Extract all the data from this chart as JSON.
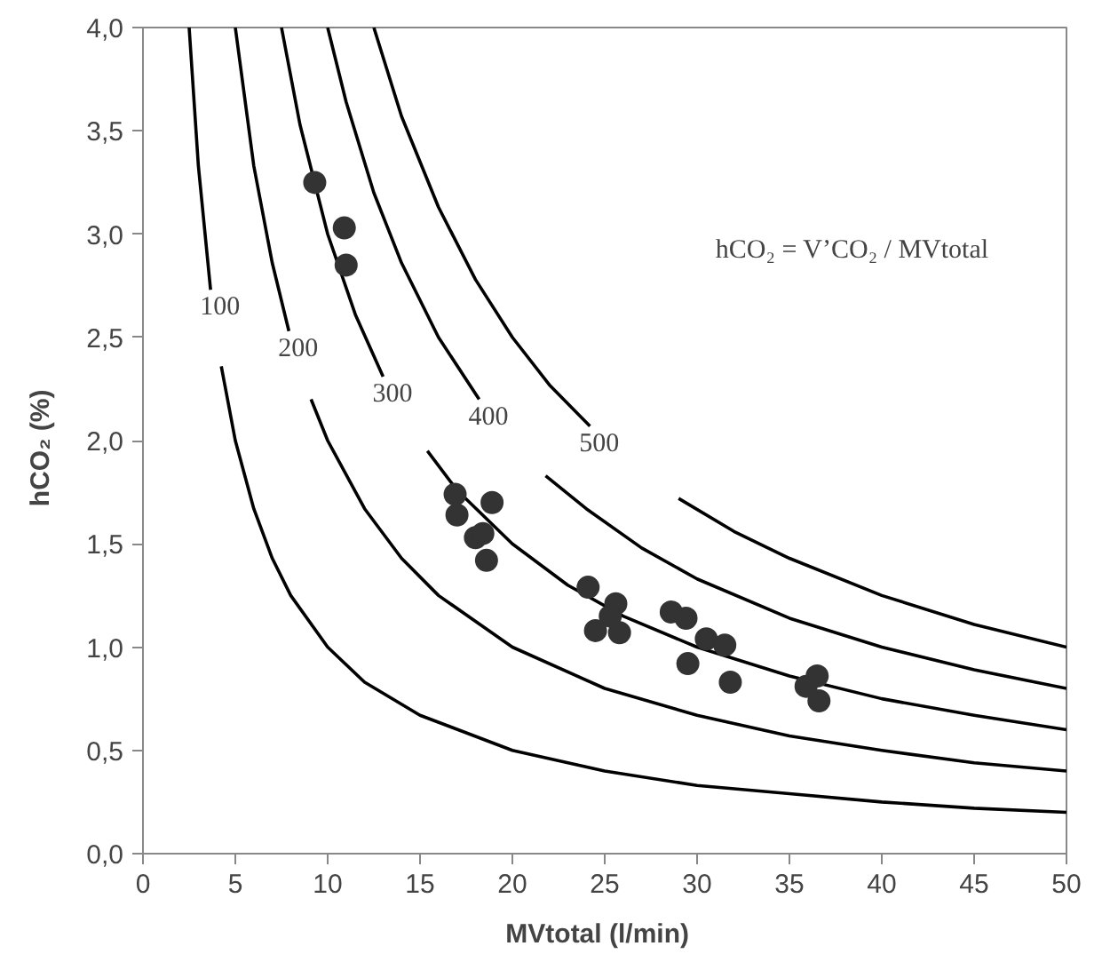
{
  "chart_data": {
    "type": "scatter",
    "xlabel": "MVtotal   (l/min)",
    "ylabel": "hCO₂   (%)",
    "xlim": [
      0,
      50
    ],
    "ylim": [
      0,
      4
    ],
    "xticks": [
      0,
      5,
      10,
      15,
      20,
      25,
      30,
      35,
      40,
      45,
      50
    ],
    "yticks": [
      {
        "value": 0,
        "label": "0,0"
      },
      {
        "value": 0.5,
        "label": "0,5"
      },
      {
        "value": 1,
        "label": "1,0"
      },
      {
        "value": 1.5,
        "label": "1,5"
      },
      {
        "value": 2,
        "label": "2,0"
      },
      {
        "value": 2.5,
        "label": "2,5"
      },
      {
        "value": 3,
        "label": "3,0"
      },
      {
        "value": 3.5,
        "label": "3,5"
      },
      {
        "value": 4,
        "label": "4,0"
      }
    ],
    "grid": false,
    "marker": "circle",
    "series": [
      {
        "color": "#333333",
        "x": [
          9.3,
          10.9,
          11.0,
          16.9,
          17.0,
          18.9,
          18.0,
          18.4,
          18.6,
          24.1,
          25.6,
          25.3,
          24.5,
          25.8,
          28.6,
          29.4,
          30.5,
          31.5,
          29.5,
          31.8,
          36.5,
          35.9,
          36.6
        ],
        "values": [
          3.25,
          3.03,
          2.85,
          1.74,
          1.64,
          1.7,
          1.53,
          1.55,
          1.42,
          1.29,
          1.21,
          1.15,
          1.08,
          1.07,
          1.17,
          1.14,
          1.04,
          1.01,
          0.92,
          0.83,
          0.86,
          0.81,
          0.74
        ]
      },
      {
        "type": "line",
        "name": "100",
        "color": "#000000",
        "marker": "none",
        "line_style": "solid",
        "x": [
          2.5,
          3,
          3.66,
          3.95,
          4.24,
          5,
          6,
          7,
          8,
          10,
          12,
          15,
          20,
          25,
          30,
          35,
          40,
          45,
          50
        ],
        "values": [
          4,
          3.33,
          2.73,
          null,
          2.36,
          2,
          1.67,
          1.43,
          1.25,
          1,
          0.83,
          0.67,
          0.5,
          0.4,
          0.33,
          0.29,
          0.25,
          0.22,
          0.2
        ]
      },
      {
        "type": "line",
        "name": "200",
        "color": "#000000",
        "marker": "none",
        "line_style": "solid",
        "x": [
          5,
          6,
          7,
          7.9,
          8.5,
          9.1,
          10,
          12,
          14,
          16,
          20,
          25,
          30,
          35,
          40,
          45,
          50
        ],
        "values": [
          4,
          3.33,
          2.86,
          2.53,
          null,
          2.2,
          2,
          1.67,
          1.43,
          1.25,
          1,
          0.8,
          0.67,
          0.57,
          0.5,
          0.44,
          0.4
        ]
      },
      {
        "type": "line",
        "name": "300",
        "color": "#000000",
        "marker": "none",
        "line_style": "solid",
        "x": [
          7.5,
          8.5,
          10,
          11.5,
          13,
          14.2,
          15.4,
          17,
          20,
          23,
          26,
          30,
          35,
          40,
          45,
          50
        ],
        "values": [
          4,
          3.53,
          3,
          2.61,
          2.31,
          null,
          1.95,
          1.76,
          1.5,
          1.3,
          1.15,
          1,
          0.86,
          0.75,
          0.67,
          0.6
        ]
      },
      {
        "type": "line",
        "name": "400",
        "color": "#000000",
        "marker": "none",
        "line_style": "solid",
        "x": [
          10,
          11,
          12.5,
          14,
          16,
          18.2,
          20,
          21.8,
          24,
          27,
          30,
          35,
          40,
          45,
          50
        ],
        "values": [
          4,
          3.64,
          3.2,
          2.86,
          2.5,
          2.2,
          null,
          1.83,
          1.67,
          1.48,
          1.33,
          1.14,
          1,
          0.89,
          0.8
        ]
      },
      {
        "type": "line",
        "name": "500",
        "color": "#000000",
        "marker": "none",
        "line_style": "solid",
        "x": [
          12.5,
          14,
          16,
          18,
          20,
          22,
          24.2,
          26.6,
          29,
          32,
          35,
          40,
          45,
          50
        ],
        "values": [
          4,
          3.57,
          3.13,
          2.78,
          2.5,
          2.27,
          2.07,
          null,
          1.72,
          1.56,
          1.43,
          1.25,
          1.11,
          1
        ]
      }
    ],
    "annotations": [
      "hCO₂ = V’CO₂ / MVtotal"
    ]
  }
}
